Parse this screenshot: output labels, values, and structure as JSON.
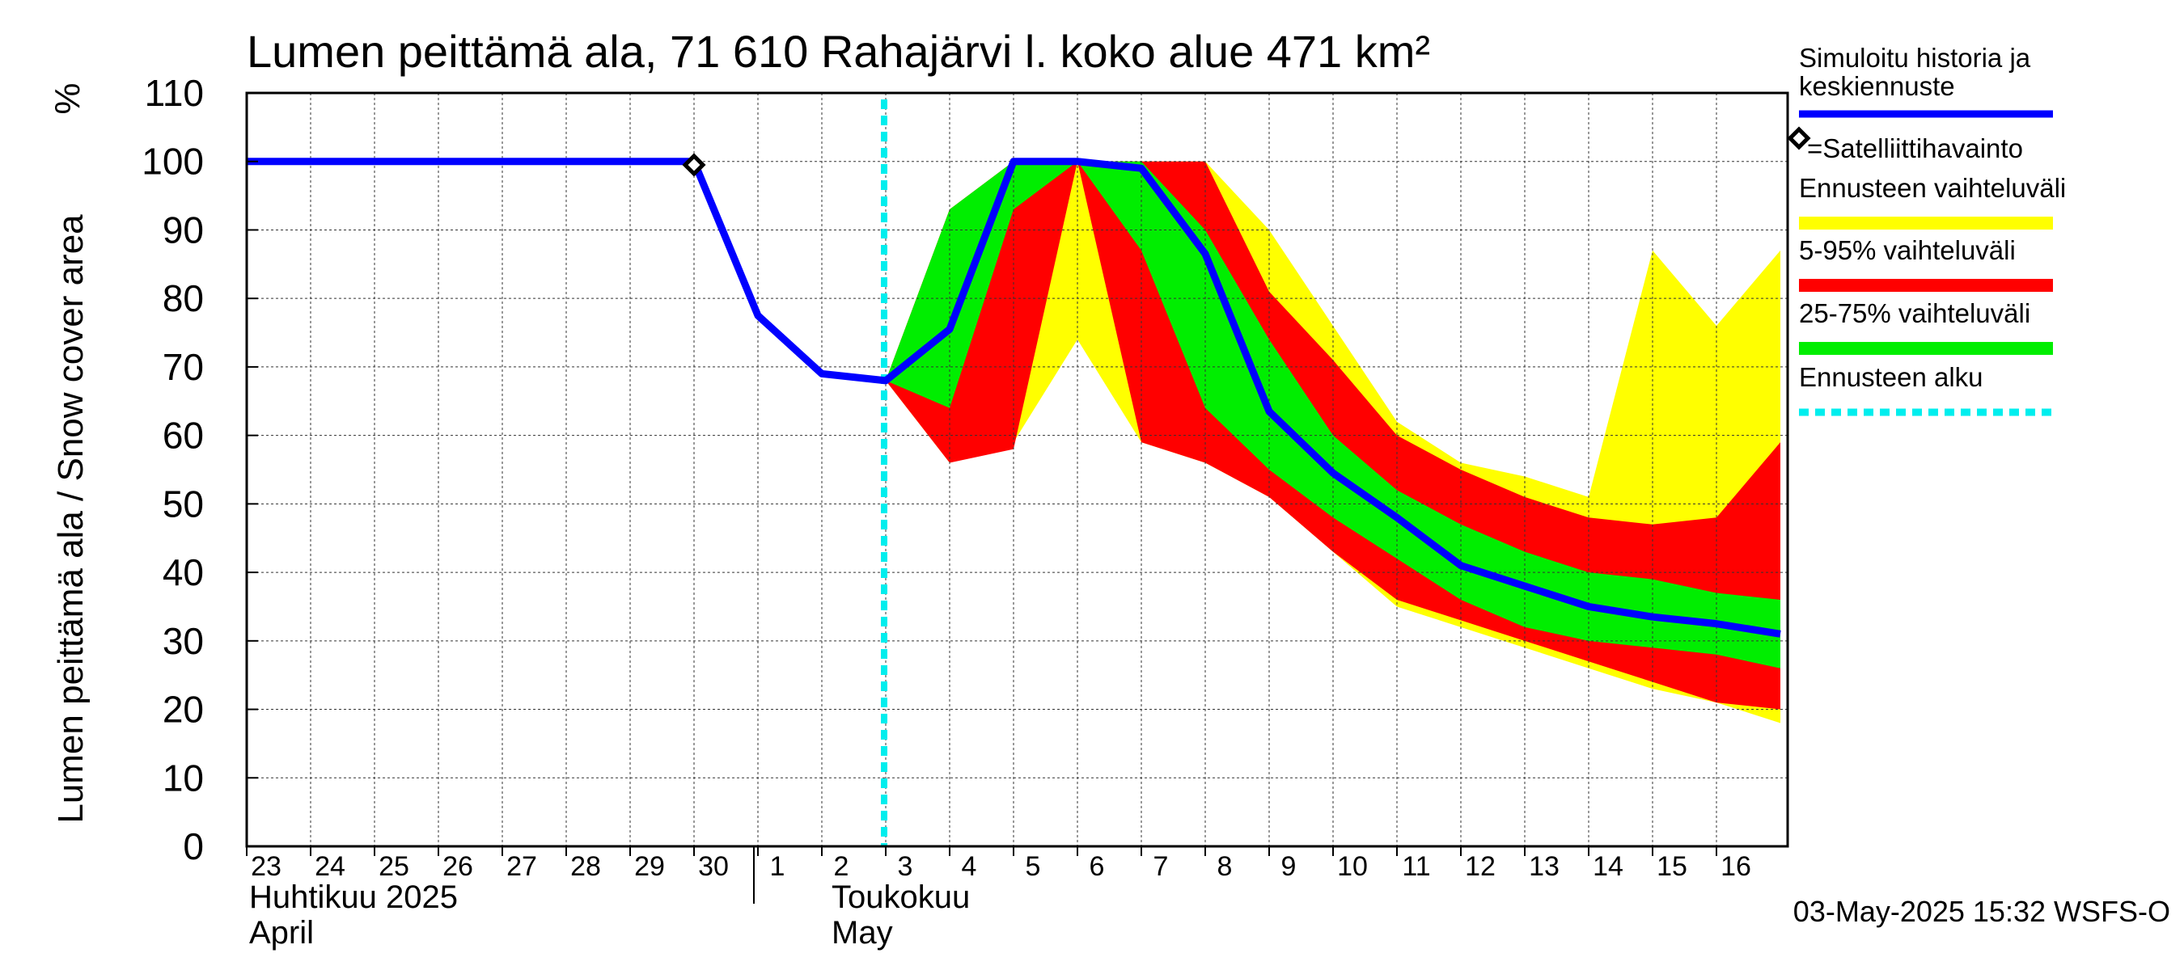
{
  "chart_data": {
    "type": "area",
    "title": "Lumen peittämä ala, 71 610 Rahajärvi l. koko alue 471 km²",
    "ylabel": "Lumen peittämä ala / Snow cover area",
    "yunit": "%",
    "ylim": [
      0,
      110
    ],
    "yticks": [
      0,
      10,
      20,
      30,
      40,
      50,
      60,
      70,
      80,
      90,
      100,
      110
    ],
    "grid": true,
    "x_range": [
      0,
      25
    ],
    "day_ticks": [
      {
        "x": 0,
        "label": "23"
      },
      {
        "x": 1,
        "label": "24"
      },
      {
        "x": 2,
        "label": "25"
      },
      {
        "x": 3,
        "label": "26"
      },
      {
        "x": 4,
        "label": "27"
      },
      {
        "x": 5,
        "label": "28"
      },
      {
        "x": 6,
        "label": "29"
      },
      {
        "x": 7,
        "label": "30"
      },
      {
        "x": 8,
        "label": "1"
      },
      {
        "x": 9,
        "label": "2"
      },
      {
        "x": 10,
        "label": "3"
      },
      {
        "x": 11,
        "label": "4"
      },
      {
        "x": 12,
        "label": "5"
      },
      {
        "x": 13,
        "label": "6"
      },
      {
        "x": 14,
        "label": "7"
      },
      {
        "x": 15,
        "label": "8"
      },
      {
        "x": 16,
        "label": "9"
      },
      {
        "x": 17,
        "label": "10"
      },
      {
        "x": 18,
        "label": "11"
      },
      {
        "x": 19,
        "label": "12"
      },
      {
        "x": 20,
        "label": "13"
      },
      {
        "x": 21,
        "label": "14"
      },
      {
        "x": 22,
        "label": "15"
      },
      {
        "x": 23,
        "label": "16"
      }
    ],
    "month_labels": [
      {
        "x": 0,
        "line1": "Huhtikuu  2025",
        "line2": "April"
      },
      {
        "x": 9,
        "line1": "Toukokuu",
        "line2": "May"
      }
    ],
    "month_divider_x": 8,
    "forecast_start_x": 10,
    "series": [
      {
        "name": "Ennusteen vaihteluväli",
        "color": "#ffff00",
        "x": [
          10,
          11,
          12,
          13,
          14,
          15,
          16,
          17,
          18,
          19,
          20,
          21,
          22,
          23,
          24
        ],
        "upper": [
          68,
          93,
          100,
          100,
          100,
          100,
          90,
          76,
          62,
          56,
          54,
          51,
          87,
          76,
          87
        ],
        "lower": [
          68,
          56,
          59,
          74,
          59,
          56,
          51,
          43,
          35,
          32,
          29,
          26,
          23,
          21,
          18
        ]
      },
      {
        "name": "5-95% vaihteluväli",
        "color": "#ff0000",
        "x": [
          10,
          11,
          12,
          13,
          14,
          15,
          16,
          17,
          18,
          19,
          20,
          21,
          22,
          23,
          24
        ],
        "upper": [
          68,
          93,
          100,
          100,
          100,
          100,
          81,
          71,
          60,
          55,
          51,
          48,
          47,
          48,
          59
        ],
        "lower": [
          68,
          56,
          58,
          100,
          59,
          56,
          51,
          43,
          36,
          33,
          30,
          27,
          24,
          21,
          20
        ]
      },
      {
        "name": "25-75% vaihteluväli",
        "color": "#00ee00",
        "x": [
          10,
          11,
          12,
          13,
          14,
          15,
          16,
          17,
          18,
          19,
          20,
          21,
          22,
          23,
          24
        ],
        "upper": [
          68,
          93,
          100,
          100,
          100,
          90,
          74,
          60,
          52,
          47,
          43,
          40,
          39,
          37,
          36
        ],
        "lower": [
          68,
          64,
          93,
          100,
          87,
          64,
          55,
          48,
          42,
          36,
          32,
          30,
          29,
          28,
          26
        ]
      },
      {
        "name": "Simuloitu historia ja keskiennuste",
        "color": "#0000ff",
        "x": [
          0,
          1,
          2,
          3,
          4,
          5,
          6,
          7,
          8,
          9,
          10,
          11,
          12,
          13,
          14,
          15,
          16,
          17,
          18,
          19,
          20,
          21,
          22,
          23,
          24
        ],
        "values": [
          100,
          100,
          100,
          100,
          100,
          100,
          100,
          100,
          77.5,
          69,
          68,
          75.5,
          100,
          100,
          99,
          86.5,
          63.5,
          54.5,
          48,
          41,
          38,
          35,
          33.5,
          32.5,
          31
        ]
      }
    ],
    "satellite_observation": {
      "x": 7,
      "y": 99.5,
      "label": "=Satelliittihavainto"
    },
    "legend": [
      {
        "kind": "line",
        "color": "#0000ff",
        "line1": "Simuloitu historia ja",
        "line2": "keskiennuste"
      },
      {
        "kind": "marker",
        "label": "=Satelliittihavainto"
      },
      {
        "kind": "band",
        "color": "#ffff00",
        "label": "Ennusteen vaihteluväli"
      },
      {
        "kind": "band",
        "color": "#ff0000",
        "label": "5-95% vaihteluväli"
      },
      {
        "kind": "band",
        "color": "#00ee00",
        "label": "25-75% vaihteluväli"
      },
      {
        "kind": "dashed",
        "color": "#00eeee",
        "label": "Ennusteen alku"
      }
    ],
    "footer": "03-May-2025 15:32 WSFS-O"
  }
}
